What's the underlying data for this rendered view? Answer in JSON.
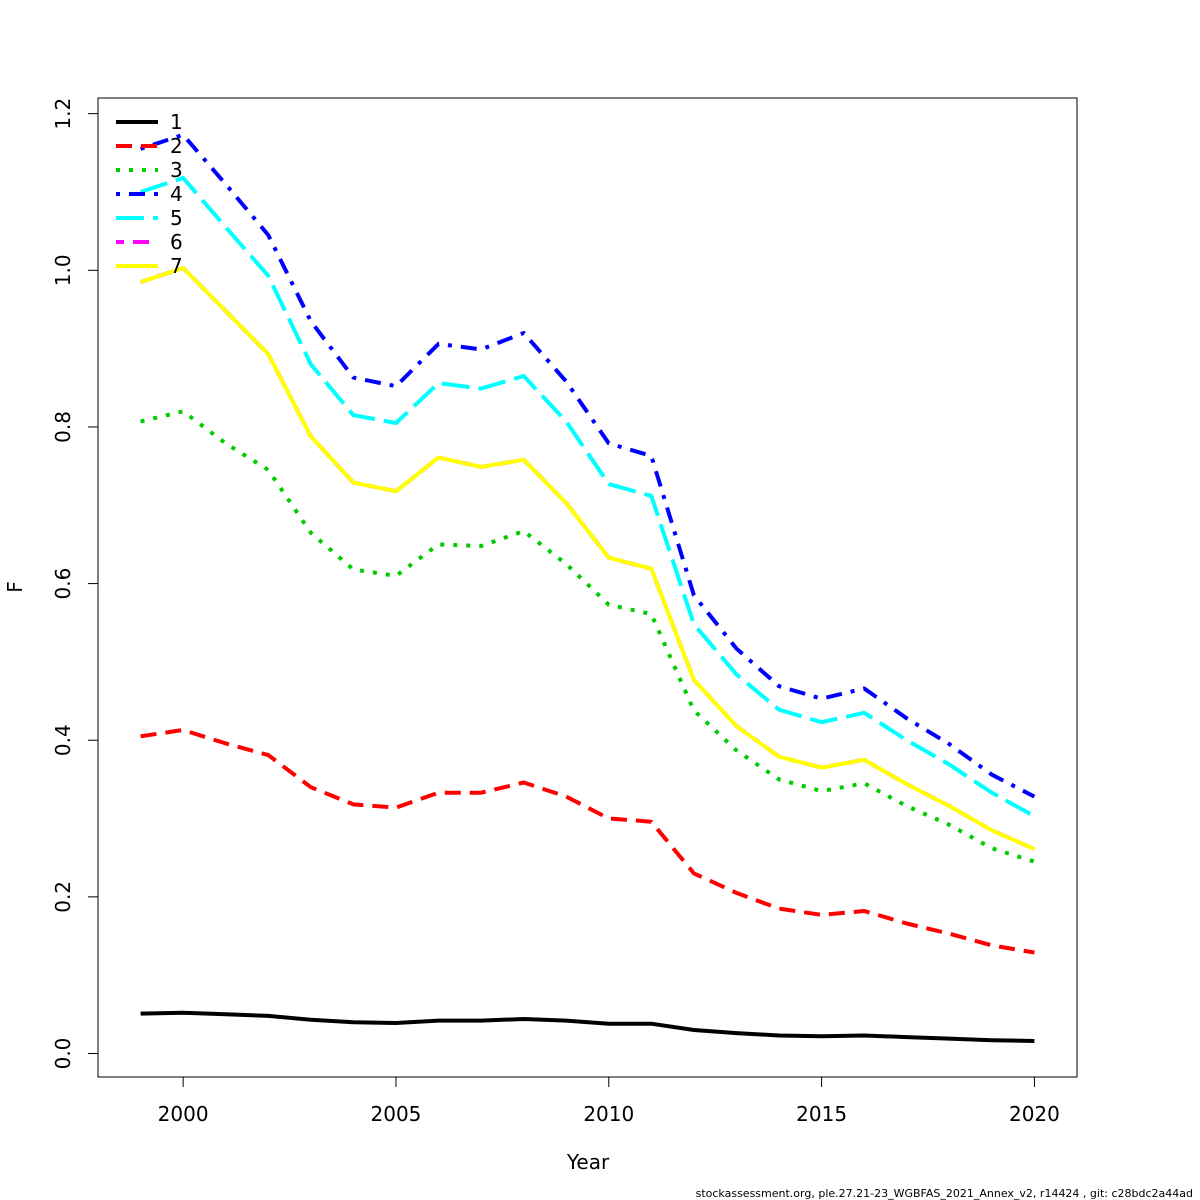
{
  "chart_data": {
    "type": "line",
    "title": "",
    "xlabel": "Year",
    "ylabel": "F",
    "xlim": [
      1998,
      2021
    ],
    "ylim": [
      -0.03,
      1.22
    ],
    "x_ticks": [
      2000,
      2005,
      2010,
      2015,
      2020
    ],
    "y_ticks": [
      0.0,
      0.2,
      0.4,
      0.6,
      0.8,
      1.0,
      1.2
    ],
    "y_tick_labels": [
      "0.0",
      "0.2",
      "0.4",
      "0.6",
      "0.8",
      "1.0",
      "1.2"
    ],
    "grid": false,
    "legend_position": "top-left",
    "x": [
      1999,
      2000,
      2001,
      2002,
      2003,
      2004,
      2005,
      2006,
      2007,
      2008,
      2009,
      2010,
      2011,
      2012,
      2013,
      2014,
      2015,
      2016,
      2017,
      2018,
      2019,
      2020
    ],
    "series": [
      {
        "name": "1",
        "color": "#000000",
        "dash": "solid",
        "values": [
          0.051,
          0.052,
          0.05,
          0.048,
          0.043,
          0.04,
          0.039,
          0.042,
          0.042,
          0.044,
          0.042,
          0.038,
          0.038,
          0.03,
          0.026,
          0.023,
          0.022,
          0.023,
          0.021,
          0.019,
          0.017,
          0.016
        ]
      },
      {
        "name": "2",
        "color": "#ff0000",
        "dash": "dashed",
        "values": [
          0.405,
          0.413,
          0.396,
          0.381,
          0.34,
          0.318,
          0.314,
          0.333,
          0.333,
          0.346,
          0.328,
          0.3,
          0.296,
          0.23,
          0.205,
          0.185,
          0.177,
          0.182,
          0.166,
          0.153,
          0.138,
          0.129
        ]
      },
      {
        "name": "3",
        "color": "#00cd00",
        "dash": "dotted",
        "values": [
          0.807,
          0.82,
          0.779,
          0.745,
          0.665,
          0.618,
          0.61,
          0.65,
          0.648,
          0.667,
          0.625,
          0.573,
          0.561,
          0.438,
          0.387,
          0.35,
          0.335,
          0.345,
          0.316,
          0.292,
          0.262,
          0.245
        ]
      },
      {
        "name": "4",
        "color": "#0000ff",
        "dash": "dotdash",
        "values": [
          1.155,
          1.173,
          1.11,
          1.045,
          0.935,
          0.863,
          0.852,
          0.906,
          0.899,
          0.92,
          0.858,
          0.779,
          0.763,
          0.585,
          0.517,
          0.469,
          0.453,
          0.466,
          0.428,
          0.395,
          0.356,
          0.328
        ]
      },
      {
        "name": "5",
        "color": "#00ffff",
        "dash": "longdash",
        "values": [
          1.1,
          1.118,
          1.055,
          0.993,
          0.88,
          0.815,
          0.805,
          0.856,
          0.849,
          0.865,
          0.807,
          0.727,
          0.712,
          0.548,
          0.484,
          0.439,
          0.423,
          0.435,
          0.4,
          0.369,
          0.333,
          0.303
        ]
      },
      {
        "name": "6",
        "color": "#ff00ff",
        "dash": "twodash",
        "values": [
          0.985,
          1.003,
          0.948,
          0.893,
          0.788,
          0.729,
          0.718,
          0.761,
          0.749,
          0.758,
          0.703,
          0.633,
          0.619,
          0.477,
          0.418,
          0.379,
          0.365,
          0.375,
          0.344,
          0.316,
          0.285,
          0.261
        ]
      },
      {
        "name": "7",
        "color": "#ffff00",
        "dash": "solid",
        "values": [
          0.985,
          1.003,
          0.948,
          0.893,
          0.788,
          0.729,
          0.718,
          0.761,
          0.749,
          0.758,
          0.703,
          0.633,
          0.619,
          0.477,
          0.418,
          0.379,
          0.365,
          0.375,
          0.344,
          0.316,
          0.285,
          0.261
        ]
      }
    ]
  },
  "footer": "stockassessment.org, ple.27.21-23_WGBFAS_2021_Annex_v2, r14424 , git: c28bdc2a44ad"
}
